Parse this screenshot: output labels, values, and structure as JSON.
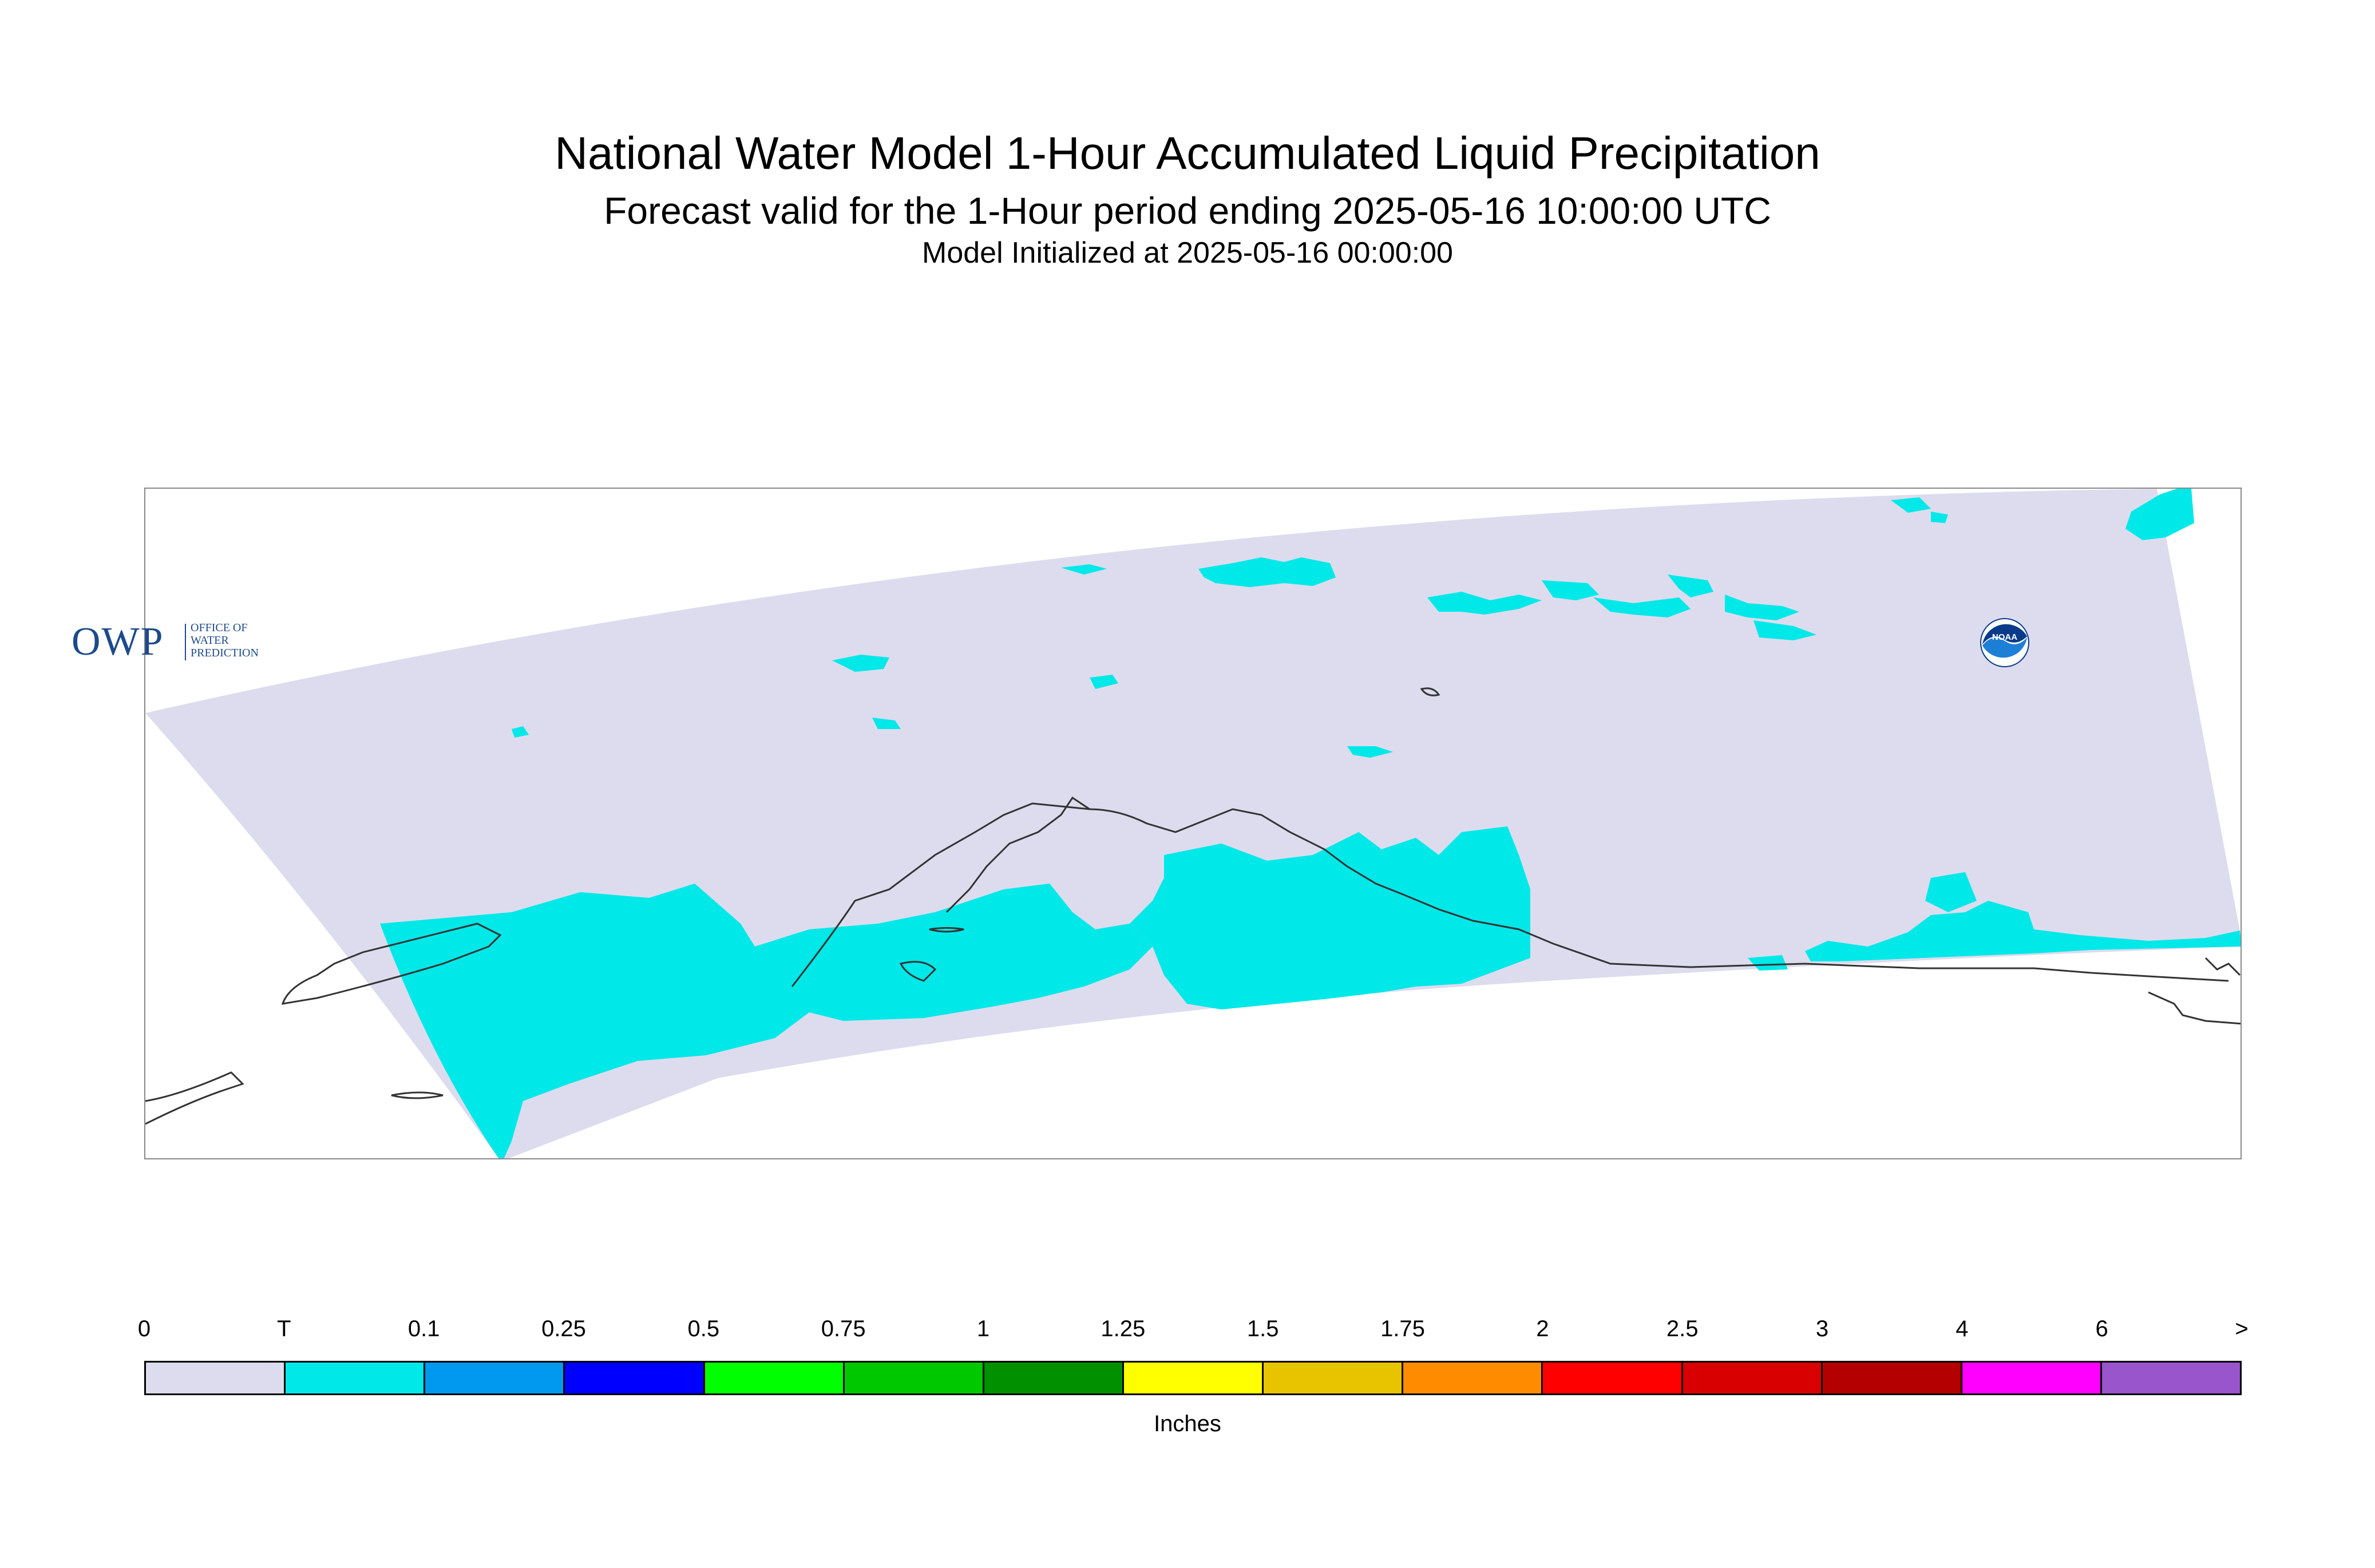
{
  "title": {
    "main": "National Water Model 1-Hour Accumulated Liquid Precipitation",
    "sub": "Forecast valid for the 1-Hour period ending 2025-05-16 10:00:00 UTC",
    "init": "Model Initialized at 2025-05-16 00:00:00"
  },
  "map": {
    "domain_fill_color": "#dcdcee",
    "trace_precip_color": "#00e8e8",
    "coastline_color": "#333333"
  },
  "logos": {
    "owp": {
      "main": "OWP",
      "line1": "OFFICE OF",
      "line2": "WATER",
      "line3": "PREDICTION"
    },
    "noaa": {
      "text": "NOAA",
      "icon": "noaa-logo-icon"
    }
  },
  "legend": {
    "labels": [
      "0",
      "T",
      "0.1",
      "0.25",
      "0.5",
      "0.75",
      "1",
      "1.25",
      "1.5",
      "1.75",
      "2",
      "2.5",
      "3",
      "4",
      "6",
      ">"
    ],
    "colors": [
      "#dcdcee",
      "#00e8e8",
      "#0099f0",
      "#0000ff",
      "#00ff00",
      "#00c800",
      "#009000",
      "#ffff00",
      "#e8c400",
      "#ff8c00",
      "#ff0000",
      "#d80000",
      "#b40000",
      "#ff00ff",
      "#9955cc"
    ],
    "units": "Inches"
  }
}
